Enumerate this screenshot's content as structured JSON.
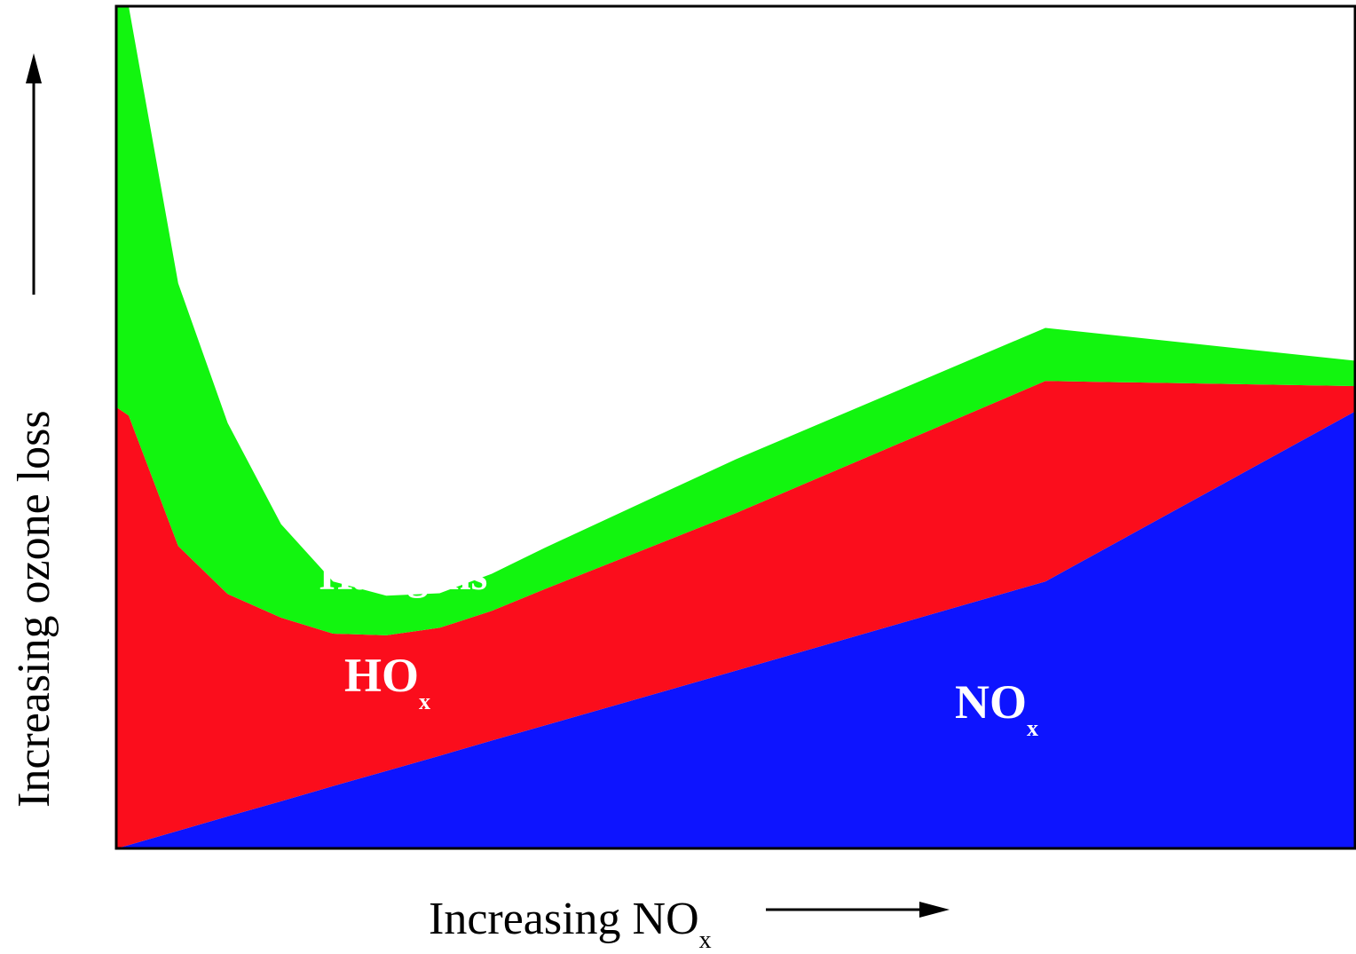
{
  "chart_data": {
    "type": "area",
    "stacked": true,
    "xlabel": {
      "text": "Increasing NO",
      "subscript": "x"
    },
    "ylabel": "Increasing ozone loss",
    "grid": false,
    "legend": "none",
    "xlim": [
      0,
      100
    ],
    "ylim": [
      0,
      100
    ],
    "x": [
      0,
      1,
      5,
      9,
      13.3,
      17.5,
      21.8,
      26.1,
      30.3,
      34.6,
      50,
      75,
      100
    ],
    "series": [
      {
        "name": "NO",
        "name_subscript": "x",
        "color": "#0d14ff",
        "values": [
          0,
          0.4,
          2.1,
          3.8,
          5.6,
          7.4,
          9.2,
          11,
          12.8,
          14.6,
          21.1,
          31.7,
          51.9
        ]
      },
      {
        "name": "HO",
        "name_subscript": "x",
        "color": "#fb0d1c",
        "values": [
          52.4,
          51,
          33.8,
          26.4,
          21.8,
          18.1,
          16.1,
          15.2,
          15.4,
          16.2,
          18.7,
          23.8,
          3
        ]
      },
      {
        "name": "Halogens",
        "color": "#12f50f",
        "values": [
          47.6,
          48.6,
          31.2,
          20.3,
          11.1,
          6.2,
          4.7,
          4.1,
          4.4,
          4.9,
          6.4,
          6.3,
          3
        ]
      }
    ]
  }
}
